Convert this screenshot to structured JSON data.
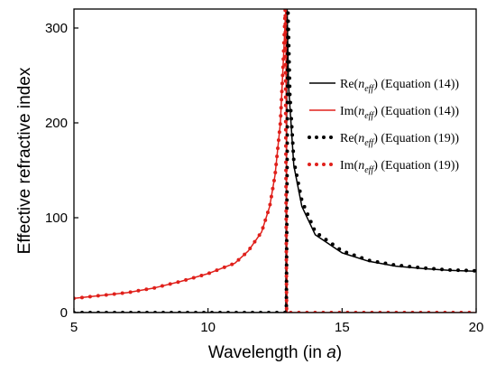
{
  "chart_data": {
    "type": "line",
    "xlabel_prefix": "Wavelength (in ",
    "xlabel_var": "a",
    "xlabel_suffix": ")",
    "ylabel": "Effective refractive index",
    "xlim": [
      5,
      20
    ],
    "ylim": [
      0,
      320
    ],
    "xticks": [
      5,
      10,
      15,
      20
    ],
    "yticks": [
      0,
      100,
      200,
      300
    ],
    "grid": false,
    "legend_position": "right",
    "resonance_wavelength": 12.9,
    "series": [
      {
        "legend_prefix": "Re(",
        "legend_var": "n",
        "legend_sub": "eff",
        "legend_suffix": ") (Equation (14))",
        "color": "#000000",
        "style": "solid",
        "x": [
          5,
          10,
          12.8,
          12.9,
          12.95,
          13,
          13.2,
          13.5,
          14,
          15,
          16,
          17,
          18,
          19,
          20
        ],
        "y": [
          0,
          0,
          0,
          0,
          320,
          240,
          155,
          112,
          82,
          63,
          54,
          49,
          46.5,
          44.5,
          43.5
        ]
      },
      {
        "legend_prefix": "Im(",
        "legend_var": "n",
        "legend_sub": "eff",
        "legend_suffix": ") (Equation (14))",
        "color": "#e0201b",
        "style": "solid",
        "x": [
          5,
          6,
          7,
          8,
          9,
          10,
          11,
          11.5,
          12,
          12.3,
          12.5,
          12.7,
          12.8,
          12.9,
          12.95,
          13,
          15,
          20
        ],
        "y": [
          15,
          18,
          21,
          26,
          33,
          41,
          52,
          65,
          85,
          112,
          145,
          200,
          260,
          320,
          0,
          0,
          0,
          0
        ]
      },
      {
        "legend_prefix": "Re(",
        "legend_var": "n",
        "legend_sub": "eff",
        "legend_suffix": ") (Equation (19))",
        "color": "#000000",
        "style": "dotted",
        "x": [
          5,
          10,
          12.8,
          12.92,
          12.98,
          13.05,
          13.2,
          13.5,
          14,
          15,
          16,
          17,
          18,
          19,
          20
        ],
        "y": [
          0,
          0,
          0,
          0,
          320,
          230,
          160,
          118,
          85,
          65,
          55,
          50,
          47,
          45,
          44
        ]
      },
      {
        "legend_prefix": "Im(",
        "legend_var": "n",
        "legend_sub": "eff",
        "legend_suffix": ") (Equation (19))",
        "color": "#e0201b",
        "style": "dotted",
        "x": [
          5,
          6,
          7,
          8,
          9,
          10,
          11,
          11.5,
          12,
          12.3,
          12.5,
          12.7,
          12.8,
          12.88,
          12.93,
          13,
          15,
          20
        ],
        "y": [
          15,
          18,
          21,
          26,
          33,
          41,
          52,
          65,
          85,
          112,
          145,
          200,
          260,
          320,
          0,
          0,
          0,
          0
        ]
      }
    ]
  }
}
